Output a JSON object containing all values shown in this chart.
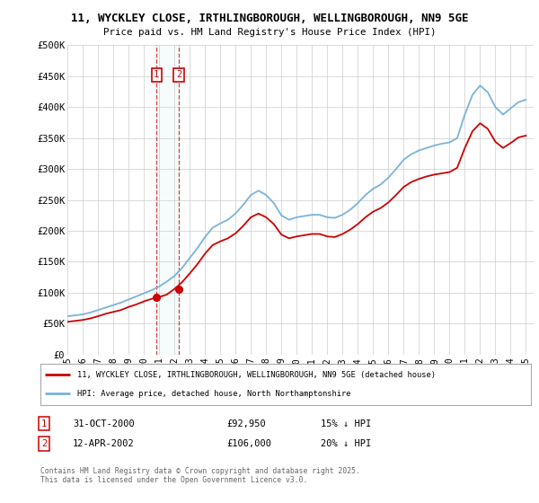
{
  "title_line1": "11, WYCKLEY CLOSE, IRTHLINGBOROUGH, WELLINGBOROUGH, NN9 5GE",
  "title_line2": "Price paid vs. HM Land Registry's House Price Index (HPI)",
  "hpi_color": "#7ab3d9",
  "price_color": "#cc0000",
  "purchase1_x": 2000.833,
  "purchase1_y": 92950,
  "purchase2_x": 2002.28,
  "purchase2_y": 106000,
  "purchase1_date": "31-OCT-2000",
  "purchase1_price": 92950,
  "purchase1_hpi_pct": "15% ↓ HPI",
  "purchase2_date": "12-APR-2002",
  "purchase2_price": 106000,
  "purchase2_hpi_pct": "20% ↓ HPI",
  "legend_line1": "11, WYCKLEY CLOSE, IRTHLINGBOROUGH, WELLINGBOROUGH, NN9 5GE (detached house)",
  "legend_line2": "HPI: Average price, detached house, North Northamptonshire",
  "footer": "Contains HM Land Registry data © Crown copyright and database right 2025.\nThis data is licensed under the Open Government Licence v3.0.",
  "bg": "#ffffff",
  "grid_color": "#cccccc",
  "ylim": [
    0,
    500000
  ],
  "xlim": [
    1995,
    2025.5
  ],
  "years_hpi": [
    1995.0,
    1995.5,
    1996.0,
    1996.5,
    1997.0,
    1997.5,
    1998.0,
    1998.5,
    1999.0,
    1999.5,
    2000.0,
    2000.5,
    2001.0,
    2001.5,
    2002.0,
    2002.5,
    2003.0,
    2003.5,
    2004.0,
    2004.5,
    2005.0,
    2005.5,
    2006.0,
    2006.5,
    2007.0,
    2007.5,
    2008.0,
    2008.5,
    2009.0,
    2009.5,
    2010.0,
    2010.5,
    2011.0,
    2011.5,
    2012.0,
    2012.5,
    2013.0,
    2013.5,
    2014.0,
    2014.5,
    2015.0,
    2015.5,
    2016.0,
    2016.5,
    2017.0,
    2017.5,
    2018.0,
    2018.5,
    2019.0,
    2019.5,
    2020.0,
    2020.5,
    2021.0,
    2021.5,
    2022.0,
    2022.5,
    2023.0,
    2023.5,
    2024.0,
    2024.5,
    2025.0
  ],
  "hpi_values": [
    62000,
    63500,
    65000,
    68000,
    72000,
    76000,
    80000,
    84000,
    89000,
    94000,
    99000,
    104000,
    110000,
    118000,
    127000,
    140000,
    156000,
    172000,
    190000,
    205000,
    212000,
    218000,
    228000,
    242000,
    258000,
    265000,
    258000,
    245000,
    225000,
    218000,
    222000,
    224000,
    226000,
    226000,
    222000,
    221000,
    226000,
    234000,
    245000,
    258000,
    268000,
    275000,
    286000,
    300000,
    315000,
    324000,
    330000,
    334000,
    338000,
    341000,
    343000,
    350000,
    388000,
    420000,
    435000,
    424000,
    400000,
    388000,
    398000,
    408000,
    412000
  ],
  "red_values": [
    53000,
    54500,
    56000,
    58500,
    62000,
    66000,
    69000,
    72000,
    77000,
    81000,
    86000,
    90000,
    92950,
    97000,
    106000,
    117000,
    131000,
    146000,
    163000,
    177000,
    183000,
    188000,
    196000,
    208000,
    222000,
    228000,
    222000,
    211000,
    194000,
    188000,
    191000,
    193000,
    195000,
    195000,
    191000,
    190000,
    195000,
    202000,
    211000,
    222000,
    231000,
    237000,
    246000,
    258000,
    271000,
    279000,
    284000,
    288000,
    291000,
    293000,
    295000,
    302000,
    334000,
    361000,
    374000,
    365000,
    344000,
    334000,
    342000,
    351000,
    354000
  ]
}
